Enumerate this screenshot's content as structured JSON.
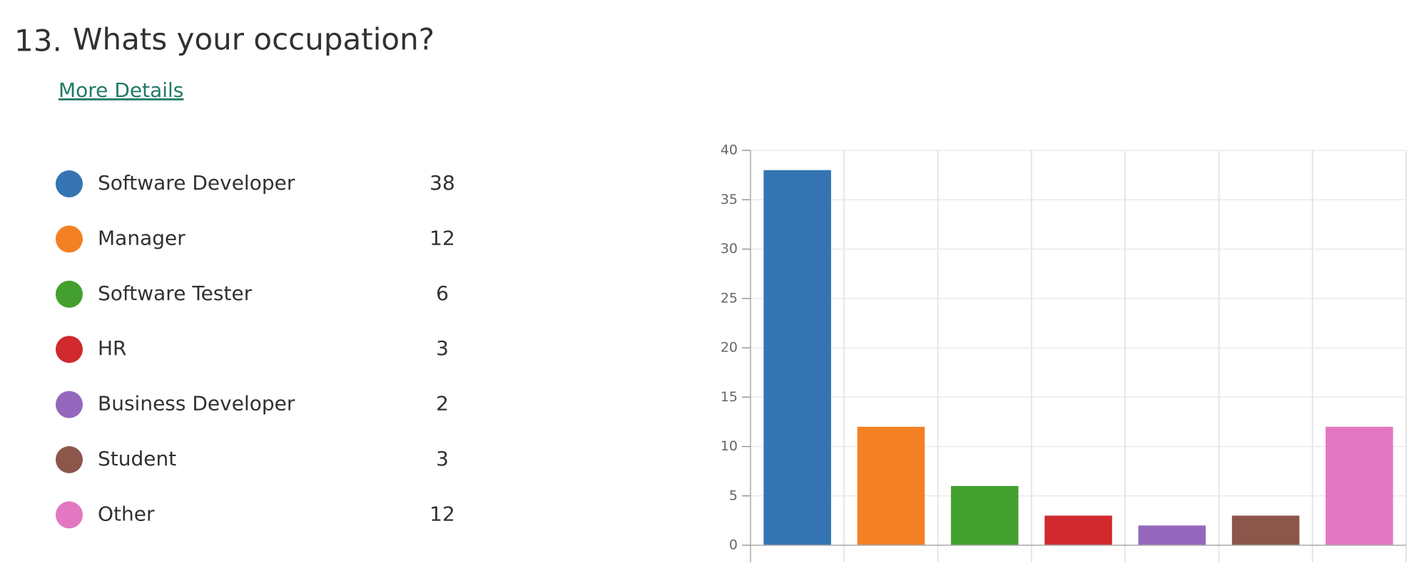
{
  "question": {
    "number": "13.",
    "title": "Whats your occupation?",
    "link": "More Details"
  },
  "chart_data": {
    "type": "bar",
    "categories": [
      "Software Developer",
      "Manager",
      "Software Tester",
      "HR",
      "Business Developer",
      "Student",
      "Other"
    ],
    "values": [
      38,
      12,
      6,
      3,
      2,
      3,
      12
    ],
    "colors": [
      "#3474b2",
      "#f48024",
      "#43a02e",
      "#d0292e",
      "#9467bd",
      "#8c564b",
      "#e377c2"
    ],
    "ylim": [
      0,
      40
    ],
    "yticks": [
      0,
      5,
      10,
      15,
      20,
      25,
      30,
      35,
      40
    ],
    "grid": true
  }
}
